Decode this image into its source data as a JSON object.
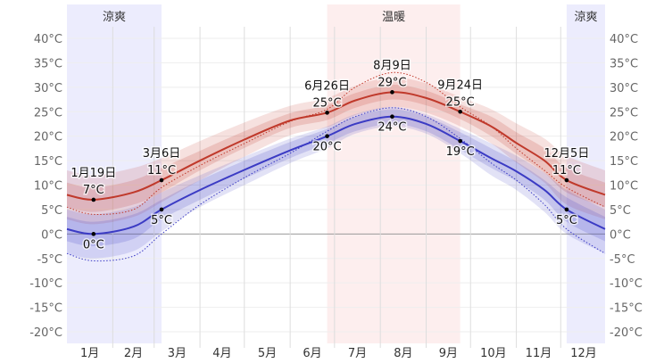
{
  "chart_data": {
    "type": "area",
    "ylim": [
      -22,
      42
    ],
    "y_ticks": [
      "-20°C",
      "-15°C",
      "-10°C",
      "-5°C",
      "0°C",
      "5°C",
      "10°C",
      "15°C",
      "20°C",
      "25°C",
      "30°C",
      "35°C",
      "40°C"
    ],
    "y_tick_values": [
      -20,
      -15,
      -10,
      -5,
      0,
      5,
      10,
      15,
      20,
      25,
      30,
      35,
      40
    ],
    "x_ticks": [
      "1月",
      "2月",
      "3月",
      "4月",
      "5月",
      "6月",
      "7月",
      "8月",
      "9月",
      "10月",
      "11月",
      "12月"
    ],
    "grid": true,
    "seasons": [
      {
        "label": "涼爽",
        "from": "1/1",
        "to": "3/6",
        "color": "#ececfd"
      },
      {
        "label": "温暖",
        "from": "6/26",
        "to": "9/24",
        "color": "#fdeeee"
      },
      {
        "label": "涼爽",
        "from": "12/5",
        "to": "12/31",
        "color": "#ececfd"
      }
    ],
    "dates": [
      "1/1",
      "1/19",
      "2/15",
      "3/6",
      "4/1",
      "5/1",
      "6/1",
      "6/26",
      "7/15",
      "8/9",
      "9/1",
      "9/24",
      "10/15",
      "11/1",
      "11/20",
      "12/5",
      "12/31"
    ],
    "series": [
      {
        "key": "high",
        "color": "#c0392b",
        "values": [
          8,
          7,
          8.5,
          11,
          15,
          19.3,
          23.2,
          24.8,
          27.3,
          29,
          27.8,
          25,
          22,
          18.6,
          15,
          11,
          8
        ],
        "p10": [
          3,
          2,
          3.5,
          6.5,
          11,
          15.8,
          20.2,
          21.8,
          24.3,
          26,
          24.8,
          22,
          18.5,
          14.6,
          10.5,
          6,
          3
        ],
        "p25": [
          5.5,
          4.5,
          6,
          8.5,
          13,
          17.6,
          21.7,
          23.3,
          25.8,
          27.5,
          26.3,
          23.5,
          20,
          16.4,
          12.5,
          8.5,
          5.5
        ],
        "p75": [
          10.5,
          9.5,
          11,
          13.5,
          17,
          21,
          24.7,
          26.3,
          28.8,
          30.5,
          29.3,
          26.5,
          24,
          20.8,
          17.5,
          13.5,
          10.5
        ],
        "p90": [
          13,
          12,
          13.5,
          15.5,
          19,
          22.8,
          26.2,
          27.8,
          30.3,
          32,
          30.8,
          28,
          25.5,
          22.6,
          19.5,
          16,
          13
        ],
        "perceived": [
          5.5,
          4,
          5,
          9.5,
          14,
          18.5,
          23,
          25.5,
          30,
          33,
          31,
          26,
          22,
          17.5,
          13,
          9.5,
          5.5
        ]
      },
      {
        "key": "low",
        "color": "#3b3bc4",
        "values": [
          1,
          0,
          1.5,
          5,
          9,
          13.1,
          17.1,
          20,
          22.5,
          24,
          22.5,
          19,
          15.5,
          12.8,
          9,
          5,
          1
        ],
        "p10": [
          -4,
          -5,
          -3.5,
          0.5,
          5.5,
          10,
          14.5,
          17.5,
          20.5,
          22,
          20.5,
          16.5,
          12,
          9,
          4.5,
          0,
          -4
        ],
        "p25": [
          -1.5,
          -2.5,
          -1,
          3,
          7,
          11.3,
          15.5,
          18.5,
          21,
          22.5,
          21,
          17.2,
          13.5,
          10.8,
          7,
          2.5,
          -1.5
        ],
        "p75": [
          3.5,
          2.5,
          4,
          7,
          11,
          15,
          18.8,
          21.5,
          24,
          25.5,
          24,
          20.8,
          17.5,
          14.8,
          11,
          7.5,
          3.5
        ],
        "p90": [
          5,
          4,
          5.5,
          8.5,
          12,
          15.8,
          19.5,
          22,
          24.5,
          26,
          24.5,
          21.5,
          18.5,
          16,
          12.5,
          9,
          5
        ],
        "perceived": [
          -4,
          -5.5,
          -4.5,
          0,
          6,
          11.5,
          16.5,
          21,
          24,
          25.8,
          24,
          19.5,
          14.5,
          11,
          6,
          1,
          -4
        ]
      }
    ],
    "annotations": [
      {
        "date": "1/19",
        "label": "1月19日",
        "high": "7°C",
        "low": "0°C",
        "hv": 7,
        "lv": 0
      },
      {
        "date": "3/6",
        "label": "3月6日",
        "high": "11°C",
        "low": "5°C",
        "hv": 11,
        "lv": 5
      },
      {
        "date": "6/26",
        "label": "6月26日",
        "high": "25°C",
        "low": "20°C",
        "hv": 24.8,
        "lv": 20
      },
      {
        "date": "8/9",
        "label": "8月9日",
        "high": "29°C",
        "low": "24°C",
        "hv": 29,
        "lv": 24
      },
      {
        "date": "9/24",
        "label": "9月24日",
        "high": "25°C",
        "low": "19°C",
        "hv": 25,
        "lv": 19
      },
      {
        "date": "12/5",
        "label": "12月5日",
        "high": "11°C",
        "low": "5°C",
        "hv": 11,
        "lv": 5
      }
    ]
  }
}
